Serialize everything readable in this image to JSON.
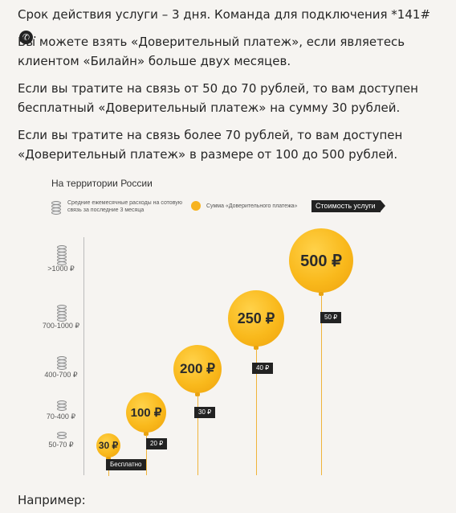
{
  "text": {
    "p1": "Срок действия услуги – 3 дня. Команда для подключения *141#",
    "p1_end": ".",
    "p2": "Вы можете взять «Доверительный платеж», если являетесь клиентом «Билайн» больше двух месяцев.",
    "p3": "Если вы тратите на связь от 50 до 70 рублей, то вам доступен бесплатный «Доверительный платеж» на сумму 30 рублей.",
    "p4": "Если вы тратите на связь более 70 рублей, то вам доступен «Доверительный платеж» в размере от 100 до 500 рублей.",
    "footer": "Например:"
  },
  "icons": {
    "phone": "phone-icon"
  },
  "colors": {
    "balloon": "#f9b91c",
    "tag": "#222222",
    "string": "#f0b43a"
  },
  "chart_data": {
    "type": "other",
    "title": "На территории России",
    "legend": {
      "expenses": "Средние ежемесячные расходы на сотовую связь за последние 3 месяца",
      "amount": "Сумма «Доверительного платежа»",
      "cost": "Стоимость услуги"
    },
    "categories": [
      "50-70 ₽",
      "70-400 ₽",
      "400-700 ₽",
      "700-1000 ₽",
      ">1000 ₽"
    ],
    "amounts": [
      "30 ₽",
      "100 ₽",
      "200 ₽",
      "250 ₽",
      "500 ₽"
    ],
    "costs": [
      "Бесплатно",
      "20 ₽",
      "30 ₽",
      "40 ₽",
      "50 ₽"
    ]
  }
}
